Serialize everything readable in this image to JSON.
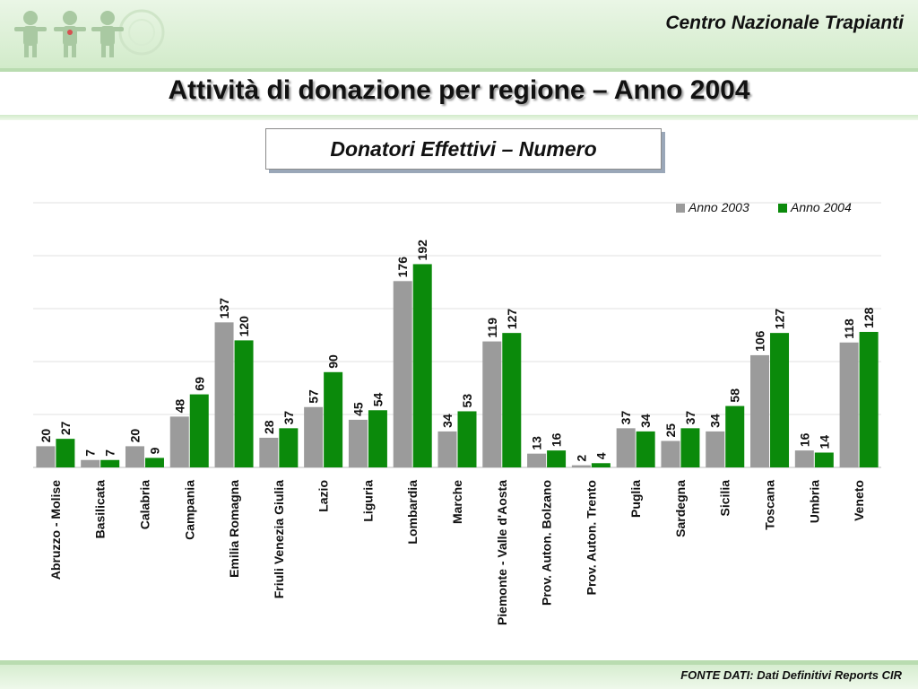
{
  "header": {
    "org_name": "Centro Nazionale Trapianti",
    "title": "Attività di donazione per regione – Anno 2004",
    "subtitle": "Donatori Effettivi – Numero"
  },
  "footer": {
    "source": "FONTE DATI: Dati Definitivi Reports CIR"
  },
  "colors": {
    "series_2003": "#9b9b9b",
    "series_2004": "#0b8a0b",
    "header_green": "#d2ebca"
  },
  "chart_data": {
    "type": "bar",
    "categories": [
      "Abruzzo - Molise",
      "Basilicata",
      "Calabria",
      "Campania",
      "Emilia Romagna",
      "Friuli Venezia Giulia",
      "Lazio",
      "Liguria",
      "Lombardia",
      "Marche",
      "Piemonte - Valle d'Aosta",
      "Prov. Auton. Bolzano",
      "Prov. Auton. Trento",
      "Puglia",
      "Sardegna",
      "Sicilia",
      "Toscana",
      "Umbria",
      "Veneto"
    ],
    "series": [
      {
        "name": "Anno 2003",
        "values": [
          20,
          7,
          20,
          48,
          137,
          28,
          57,
          45,
          176,
          34,
          119,
          13,
          2,
          37,
          25,
          34,
          106,
          16,
          118
        ]
      },
      {
        "name": "Anno 2004",
        "values": [
          27,
          7,
          9,
          69,
          120,
          37,
          90,
          54,
          192,
          53,
          127,
          16,
          4,
          34,
          37,
          58,
          127,
          14,
          128
        ]
      }
    ],
    "ylim": [
      0,
      250
    ],
    "grid": true,
    "legend": "top-right",
    "data_labels": true
  }
}
